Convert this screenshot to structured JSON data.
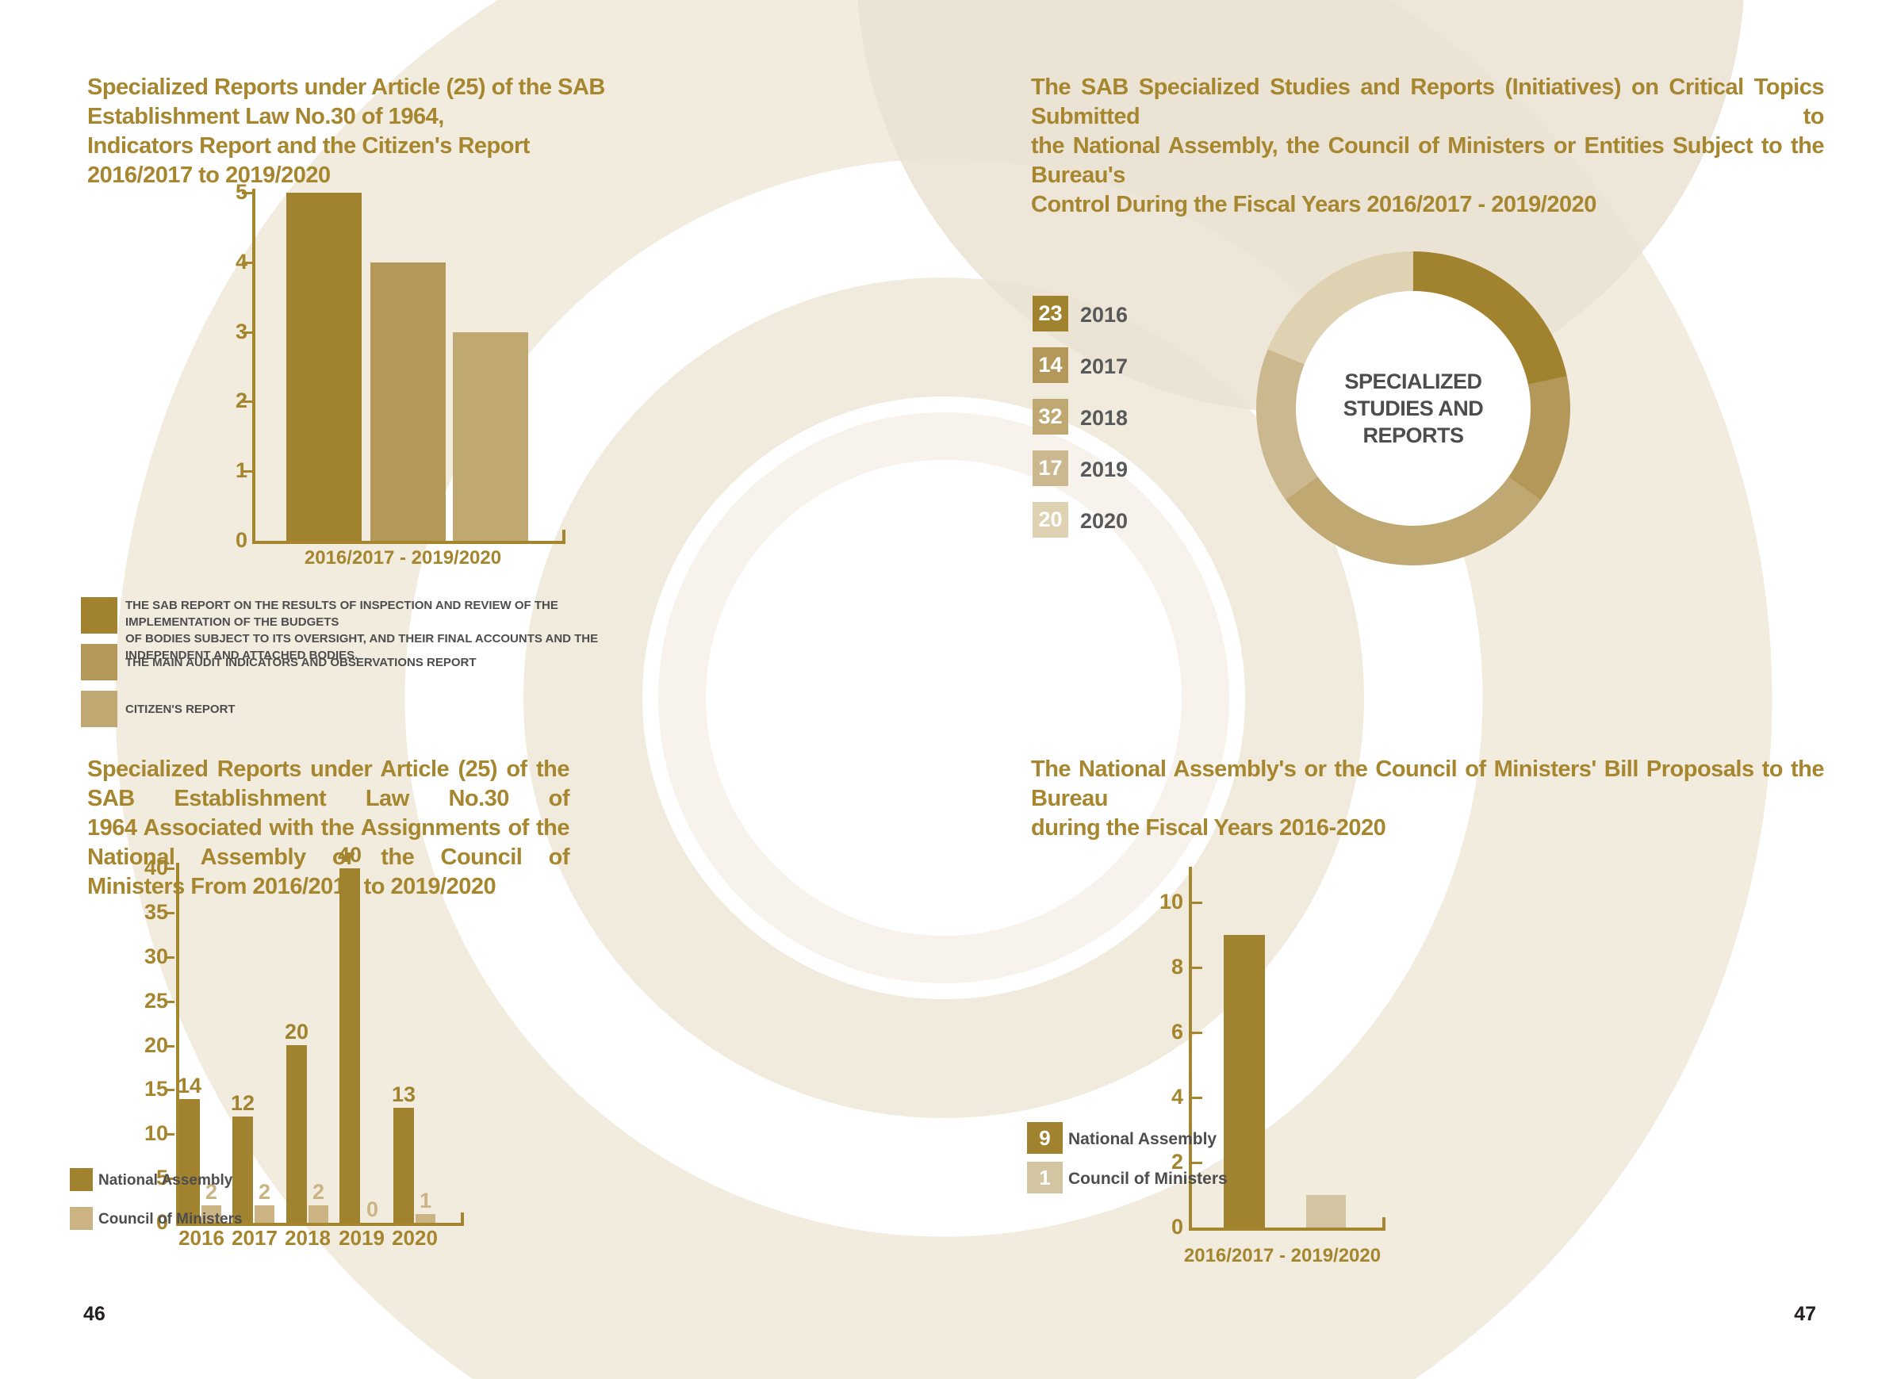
{
  "page": {
    "left_number": "46",
    "right_number": "47"
  },
  "palette": {
    "goldtitle": "#a6862f",
    "goldaxis": "#a5862f",
    "gray": "#4d4d4d",
    "grayyear": "#58595b",
    "pagenum": "#231f20",
    "s1": "#a1832f",
    "s2": "#b4985a",
    "s3": "#c0a873",
    "s4": "#cbb88f",
    "s5": "#ded2b3",
    "com3": "#cbb384",
    "com4": "#d3c5a2",
    "bg0": "#f7f3ec",
    "bg1": "#f1ebdd",
    "bg2": "#f2ecdf",
    "bg3": "#eae2d2",
    "white": "#ffffff"
  },
  "titles": {
    "chart1": [
      "Specialized Reports under Article (25) of the SAB Establishment Law No.30 of 1964,",
      "Indicators Report and the Citizen's Report 2016/2017 to 2019/2020"
    ],
    "chart2": [
      "The SAB Specialized Studies and Reports (Initiatives) on Critical Topics Submitted to",
      "the National Assembly, the Council of Ministers or Entities Subject to the Bureau's",
      "Control During the Fiscal Years 2016/2017 - 2019/2020"
    ],
    "chart3": [
      "Specialized Reports under Article (25) of the SAB Establishment Law No.30 of",
      "1964 Associated with the Assignments of the National Assembly or the Council of",
      "Ministers From 2016/2017 to 2019/2020"
    ],
    "chart4": [
      "The National Assembly's or the Council of Ministers' Bill Proposals to the Bureau",
      "during the Fiscal Years 2016-2020"
    ]
  },
  "legend1": {
    "items": [
      {
        "lines": [
          "THE SAB REPORT ON THE RESULTS OF INSPECTION AND REVIEW OF THE IMPLEMENTATION OF THE BUDGETS",
          "OF BODIES SUBJECT TO ITS OVERSIGHT, AND THEIR FINAL ACCOUNTS AND THE INDEPENDENT AND ATTACHED BODIES."
        ]
      },
      {
        "lines": [
          "THE MAIN AUDIT INDICATORS AND OBSERVATIONS REPORT"
        ]
      },
      {
        "lines": [
          "CITIZEN'S REPORT"
        ]
      }
    ]
  },
  "donut": {
    "center_lines": [
      "SPECIALIZED",
      "STUDIES AND",
      "REPORTS"
    ]
  },
  "chart_data": [
    {
      "id": "c1",
      "type": "bar",
      "title": "Specialized Reports under Article (25) of the SAB Establishment Law No.30 of 1964, Indicators Report and the Citizen's Report 2016/2017 to 2019/2020",
      "categories": [
        "THE SAB REPORT ON THE RESULTS OF INSPECTION AND REVIEW OF THE IMPLEMENTATION OF THE BUDGETS OF BODIES SUBJECT TO ITS OVERSIGHT, AND THEIR FINAL ACCOUNTS AND THE INDEPENDENT AND ATTACHED BODIES.",
        "THE MAIN AUDIT INDICATORS AND OBSERVATIONS REPORT",
        "CITIZEN'S REPORT"
      ],
      "values": [
        5,
        4,
        3
      ],
      "xlabel": "2016/2017 - 2019/2020",
      "ylabel": "",
      "ylim": [
        0,
        5
      ],
      "ytick_step": 1
    },
    {
      "id": "c2",
      "type": "pie",
      "title": "SPECIALIZED STUDIES AND REPORTS",
      "categories": [
        "2016",
        "2017",
        "2018",
        "2019",
        "2020"
      ],
      "values": [
        23,
        14,
        32,
        17,
        20
      ],
      "legend_position": "left"
    },
    {
      "id": "c3",
      "type": "bar",
      "title": "Specialized Reports under Article (25) of the SAB Establishment Law No.30 of 1964 Associated with the Assignments of the National Assembly or the Council of Ministers From 2016/2017 to 2019/2020",
      "categories": [
        "2016",
        "2017",
        "2018",
        "2019",
        "2020"
      ],
      "series": [
        {
          "name": "National Assembly",
          "values": [
            14,
            12,
            20,
            40,
            13
          ]
        },
        {
          "name": "Council of Ministers",
          "values": [
            2,
            2,
            2,
            0,
            1
          ]
        }
      ],
      "xlabel": "",
      "ylabel": "",
      "ylim": [
        0,
        40
      ],
      "ytick_step": 5
    },
    {
      "id": "c4",
      "type": "bar",
      "title": "The National Assembly's or the Council of Ministers' Bill Proposals to the Bureau during the Fiscal Years 2016-2020",
      "categories": [
        "2016/2017 - 2019/2020"
      ],
      "series": [
        {
          "name": "National Assembly",
          "values": [
            9
          ]
        },
        {
          "name": "Council of Ministers",
          "values": [
            1
          ]
        }
      ],
      "xlabel": "2016/2017 - 2019/2020",
      "ylabel": "",
      "ylim": [
        0,
        10
      ],
      "ytick_step": 2
    }
  ]
}
